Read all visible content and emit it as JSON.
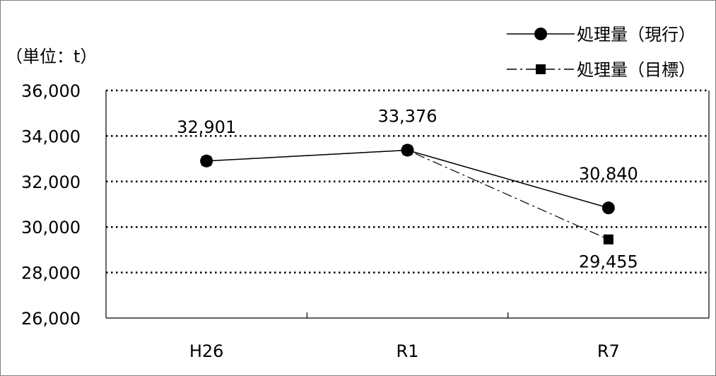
{
  "chart_data": {
    "type": "line",
    "unit_label": "（単位：t）",
    "categories": [
      "H26",
      "R1",
      "R7"
    ],
    "ylim": [
      26000,
      36000
    ],
    "y_ticks": [
      "26,000",
      "28,000",
      "30,000",
      "32,000",
      "34,000",
      "36,000"
    ],
    "grid": "horizontal dotted",
    "legend_position": "top-right",
    "series": [
      {
        "name": "処理量（現行）",
        "marker": "circle",
        "line_style": "solid",
        "values": [
          32901,
          33376,
          30840
        ],
        "labels": [
          "32,901",
          "33,376",
          "30,840"
        ]
      },
      {
        "name": "処理量（目標）",
        "marker": "square",
        "line_style": "dash-dot",
        "values": [
          32901,
          33376,
          29455
        ],
        "labels": [
          "",
          "",
          "29,455"
        ]
      }
    ]
  }
}
